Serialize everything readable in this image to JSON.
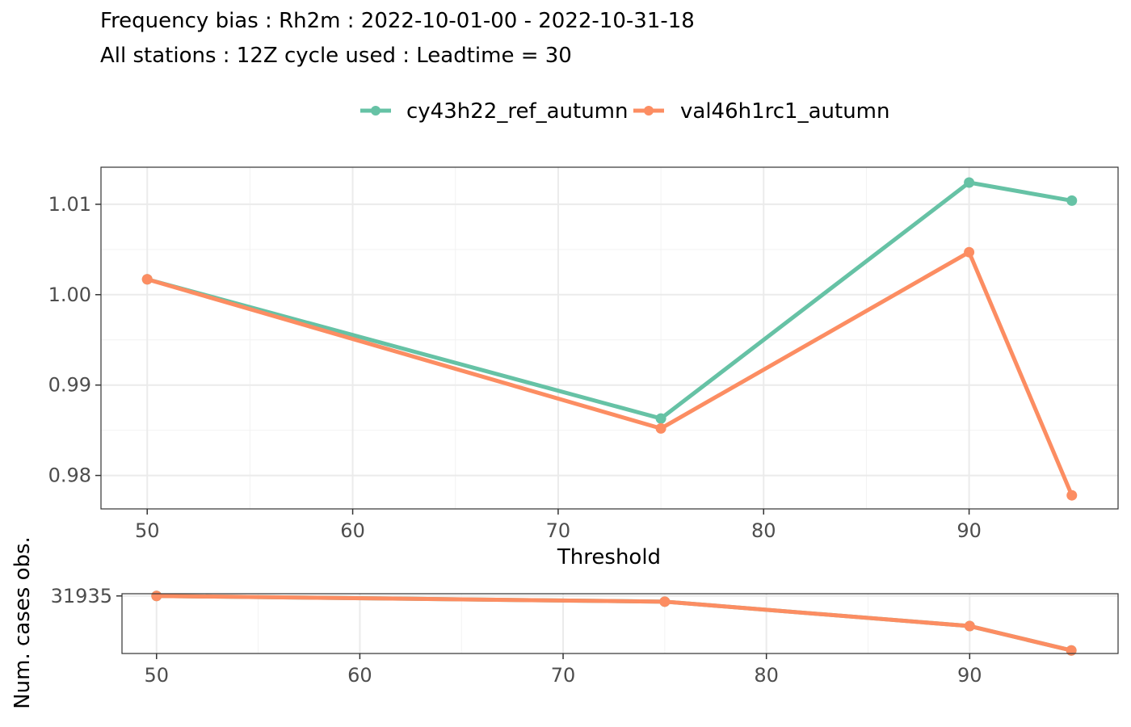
{
  "chart_data": [
    {
      "type": "line",
      "title": "Frequency bias : Rh2m : 2022-10-01-00 - 2022-10-31-18",
      "subtitle": "All stations : 12Z cycle used : Leadtime = 30",
      "xlabel": "Threshold",
      "ylabel": "",
      "x": [
        50,
        75,
        90,
        95
      ],
      "xlim": [
        47.75,
        97.25
      ],
      "ylim": [
        0.9763,
        1.0141
      ],
      "xticks": [
        50,
        60,
        70,
        80,
        90
      ],
      "yticks": [
        0.98,
        0.99,
        1.0,
        1.01
      ],
      "ytick_labels": [
        "0.98",
        "0.99",
        "1.00",
        "1.01"
      ],
      "grid": true,
      "legend_position": "top",
      "series": [
        {
          "name": "cy43h22_ref_autumn",
          "color": "#66c2a5",
          "values": [
            1.0017,
            0.9863,
            1.0124,
            1.0104
          ]
        },
        {
          "name": "val46h1rc1_autumn",
          "color": "#fc8d62",
          "values": [
            1.0017,
            0.9852,
            1.0047,
            0.9778
          ]
        }
      ]
    },
    {
      "type": "line",
      "title": "",
      "xlabel": "",
      "ylabel": "Num. cases obs.",
      "x": [
        50,
        75,
        90,
        95
      ],
      "xlim": [
        48.3,
        97.3
      ],
      "ylim": [
        22500,
        32300
      ],
      "xticks": [
        50,
        60,
        70,
        80,
        90
      ],
      "yticks": [
        31935
      ],
      "ytick_labels": [
        "31935"
      ],
      "grid": true,
      "series": [
        {
          "name": "cy43h22_ref_autumn",
          "color": "#66c2a5",
          "values": [
            31935,
            31000,
            27000,
            23000
          ]
        },
        {
          "name": "val46h1rc1_autumn",
          "color": "#fc8d62",
          "values": [
            31935,
            31000,
            27000,
            23000
          ]
        }
      ]
    }
  ]
}
